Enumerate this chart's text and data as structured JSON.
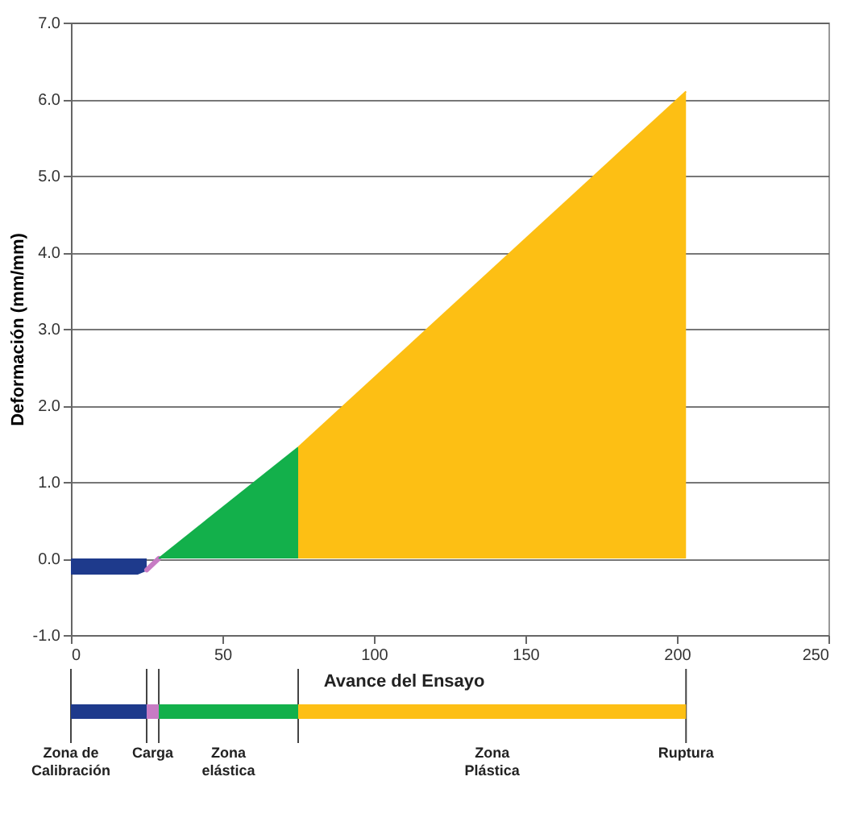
{
  "chart_data": {
    "type": "area",
    "ylabel": "Deformación  (mm/mm)",
    "xlabel": "Avance del Ensayo",
    "series": [
      {
        "color": "#1e3a8c",
        "x": [
          0,
          22,
          25
        ],
        "values": [
          -0.2,
          -0.2,
          -0.15
        ]
      },
      {
        "type": "line",
        "color": "#c77bc4",
        "x": [
          25,
          29
        ],
        "values": [
          -0.15,
          0
        ]
      },
      {
        "color": "#13b04b",
        "x": [
          29,
          75
        ],
        "values": [
          0,
          1.45
        ]
      },
      {
        "color": "#fdbf14",
        "x": [
          75,
          203
        ],
        "values": [
          1.45,
          6.1
        ]
      }
    ],
    "xlim": [
      0,
      250
    ],
    "xticks": [
      0,
      50,
      100,
      150,
      200,
      250
    ],
    "ylim": [
      -1,
      7
    ],
    "yticks": [
      {
        "value": -1,
        "label": "-1.0"
      },
      {
        "value": 0,
        "label": "0.0"
      },
      {
        "value": 1,
        "label": "1.0"
      },
      {
        "value": 2,
        "label": "2.0"
      },
      {
        "value": 3,
        "label": "3.0"
      },
      {
        "value": 4,
        "label": "4.0"
      },
      {
        "value": 5,
        "label": "5.0"
      },
      {
        "value": 6,
        "label": "6.0"
      },
      {
        "value": 7,
        "label": "7.0"
      }
    ],
    "grid": "y",
    "annotations": [
      "Zona de\nCalibración",
      "Carga",
      "Zona\nelástica",
      "Zona\nPlástica",
      "Ruptura"
    ]
  }
}
